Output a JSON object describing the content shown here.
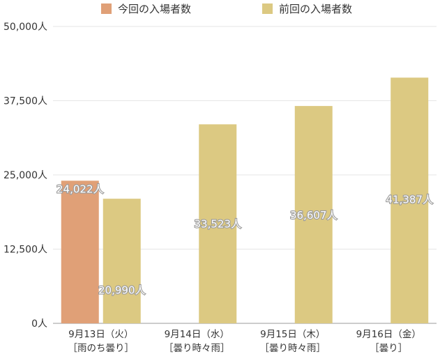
{
  "chart_data": {
    "type": "bar",
    "categories": [
      [
        "9月13日（火）",
        "［雨のち曇り］"
      ],
      [
        "9月14日（水）",
        "［曇り時々雨］"
      ],
      [
        "9月15日（木）",
        "［曇り時々雨］"
      ],
      [
        "9月16日（金）",
        "［曇り］"
      ]
    ],
    "series": [
      {
        "name": "今回の入場者数",
        "color": "#e0a077",
        "values": [
          24022,
          null,
          null,
          null
        ],
        "labels": [
          "24,022人",
          null,
          null,
          null
        ]
      },
      {
        "name": "前回の入場者数",
        "color": "#dcc982",
        "values": [
          20990,
          33523,
          36607,
          41387
        ],
        "labels": [
          "20,990人",
          "33,523人",
          "36,607人",
          "41,387人"
        ]
      }
    ],
    "yticks": [
      0,
      12500,
      25000,
      37500,
      50000
    ],
    "ytick_labels": [
      "0人",
      "12,500人",
      "25,000人",
      "37,500人",
      "50,000人"
    ],
    "ylim": [
      0,
      50000
    ],
    "grid": true,
    "legend_position": "top-center"
  }
}
